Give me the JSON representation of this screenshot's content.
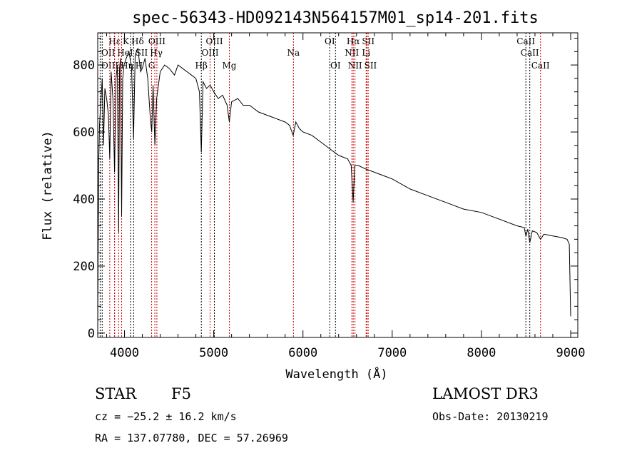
{
  "chart_data": {
    "type": "line",
    "title": "spec-56343-HD092143N564157M01_sp14-201.fits",
    "xlabel": "Wavelength (Å)",
    "ylabel": "Flux (relative)",
    "xlim": [
      3700,
      9080
    ],
    "ylim": [
      -13,
      896
    ],
    "xticks": [
      4000,
      5000,
      6000,
      7000,
      8000,
      9000
    ],
    "yticks": [
      0,
      200,
      400,
      600,
      800
    ],
    "grid": false,
    "series": [
      {
        "name": "spectrum",
        "x": [
          3700,
          3705,
          3712,
          3720,
          3735,
          3750,
          3765,
          3780,
          3800,
          3820,
          3835,
          3850,
          3870,
          3889,
          3905,
          3920,
          3934,
          3945,
          3955,
          3968,
          3980,
          3995,
          4020,
          4050,
          4080,
          4101,
          4120,
          4150,
          4180,
          4200,
          4230,
          4260,
          4290,
          4305,
          4320,
          4340,
          4360,
          4400,
          4450,
          4500,
          4560,
          4600,
          4650,
          4700,
          4750,
          4800,
          4840,
          4861,
          4880,
          4920,
          4960,
          5000,
          5050,
          5100,
          5150,
          5175,
          5200,
          5270,
          5330,
          5400,
          5500,
          5600,
          5700,
          5800,
          5850,
          5890,
          5920,
          5960,
          6000,
          6100,
          6200,
          6300,
          6400,
          6500,
          6540,
          6563,
          6580,
          6620,
          6700,
          6800,
          6900,
          7000,
          7200,
          7400,
          7600,
          7800,
          8000,
          8200,
          8400,
          8480,
          8498,
          8520,
          8542,
          8570,
          8620,
          8662,
          8700,
          8800,
          8900,
          8960,
          8985,
          9000
        ],
        "y": [
          0,
          250,
          520,
          620,
          690,
          760,
          560,
          730,
          700,
          650,
          520,
          780,
          700,
          480,
          760,
          800,
          300,
          790,
          820,
          350,
          760,
          800,
          820,
          840,
          790,
          580,
          830,
          850,
          780,
          790,
          820,
          760,
          640,
          600,
          740,
          560,
          700,
          780,
          800,
          790,
          770,
          800,
          790,
          780,
          770,
          760,
          720,
          540,
          750,
          730,
          740,
          720,
          700,
          710,
          680,
          630,
          690,
          700,
          680,
          680,
          660,
          650,
          640,
          630,
          620,
          590,
          630,
          610,
          600,
          590,
          570,
          550,
          530,
          520,
          500,
          390,
          500,
          500,
          490,
          480,
          470,
          460,
          430,
          410,
          390,
          370,
          360,
          340,
          320,
          315,
          290,
          310,
          270,
          305,
          300,
          280,
          295,
          290,
          285,
          280,
          265,
          50
        ]
      }
    ],
    "line_markers": [
      {
        "wavelength": 3727,
        "label": "OII",
        "row": 2,
        "color": "#000000"
      },
      {
        "wavelength": 3750,
        "label": "OIII",
        "row": 3,
        "color": "#000000"
      },
      {
        "wavelength": 3835,
        "label": "Hη",
        "row": 3,
        "color": "#cc0000"
      },
      {
        "wavelength": 3889,
        "label": "Hε",
        "row": 1,
        "color": "#cc0000"
      },
      {
        "wavelength": 3889,
        "label": "HeI",
        "row": 2,
        "color": "#cc0000"
      },
      {
        "wavelength": 3934,
        "label": "K",
        "row": 1,
        "color": "#cc0000"
      },
      {
        "wavelength": 3968,
        "label": "H",
        "row": 3,
        "color": "#cc0000"
      },
      {
        "wavelength": 4068,
        "label": "SII",
        "row": 2,
        "color": "#000000"
      },
      {
        "wavelength": 4102,
        "label": "Hδ",
        "row": 1,
        "color": "#000000"
      },
      {
        "wavelength": 4304,
        "label": "G",
        "row": 3,
        "color": "#cc0000"
      },
      {
        "wavelength": 4340,
        "label": "Hγ",
        "row": 2,
        "color": "#cc0000"
      },
      {
        "wavelength": 4363,
        "label": "OIII",
        "row": 1,
        "color": "#cc0000"
      },
      {
        "wavelength": 4861,
        "label": "Hβ",
        "row": 3,
        "color": "#000000"
      },
      {
        "wavelength": 4959,
        "label": "OIII",
        "row": 2,
        "color": "#cc0000"
      },
      {
        "wavelength": 5007,
        "label": "OIII",
        "row": 1,
        "color": "#000000"
      },
      {
        "wavelength": 5175,
        "label": "Mg",
        "row": 3,
        "color": "#cc0000"
      },
      {
        "wavelength": 5893,
        "label": "Na",
        "row": 2,
        "color": "#cc0000"
      },
      {
        "wavelength": 6300,
        "label": "OI",
        "row": 1,
        "color": "#000000"
      },
      {
        "wavelength": 6364,
        "label": "OI",
        "row": 3,
        "color": "#000000"
      },
      {
        "wavelength": 6548,
        "label": "NII",
        "row": 2,
        "color": "#cc0000"
      },
      {
        "wavelength": 6563,
        "label": "Hα",
        "row": 1,
        "color": "#cc0000"
      },
      {
        "wavelength": 6583,
        "label": "NII",
        "row": 3,
        "color": "#cc0000"
      },
      {
        "wavelength": 6708,
        "label": "Li",
        "row": 2,
        "color": "#cc0000"
      },
      {
        "wavelength": 6717,
        "label": "SII",
        "row": 1,
        "color": "#cc0000"
      },
      {
        "wavelength": 6731,
        "label": "SII",
        "row": 3,
        "color": "#cc0000"
      },
      {
        "wavelength": 8498,
        "label": "CaII",
        "row": 1,
        "color": "#000000"
      },
      {
        "wavelength": 8542,
        "label": "CaII",
        "row": 2,
        "color": "#000000"
      },
      {
        "wavelength": 8662,
        "label": "CaII",
        "row": 3,
        "color": "#cc0000"
      }
    ]
  },
  "info": {
    "class": "STAR",
    "subclass": "F5",
    "cz": "cz = −25.2 ± 16.2 km/s",
    "coords": "RA = 137.07780, DEC =  57.26969",
    "survey": "LAMOST DR3",
    "obs_date": "Obs-Date: 20130219"
  }
}
